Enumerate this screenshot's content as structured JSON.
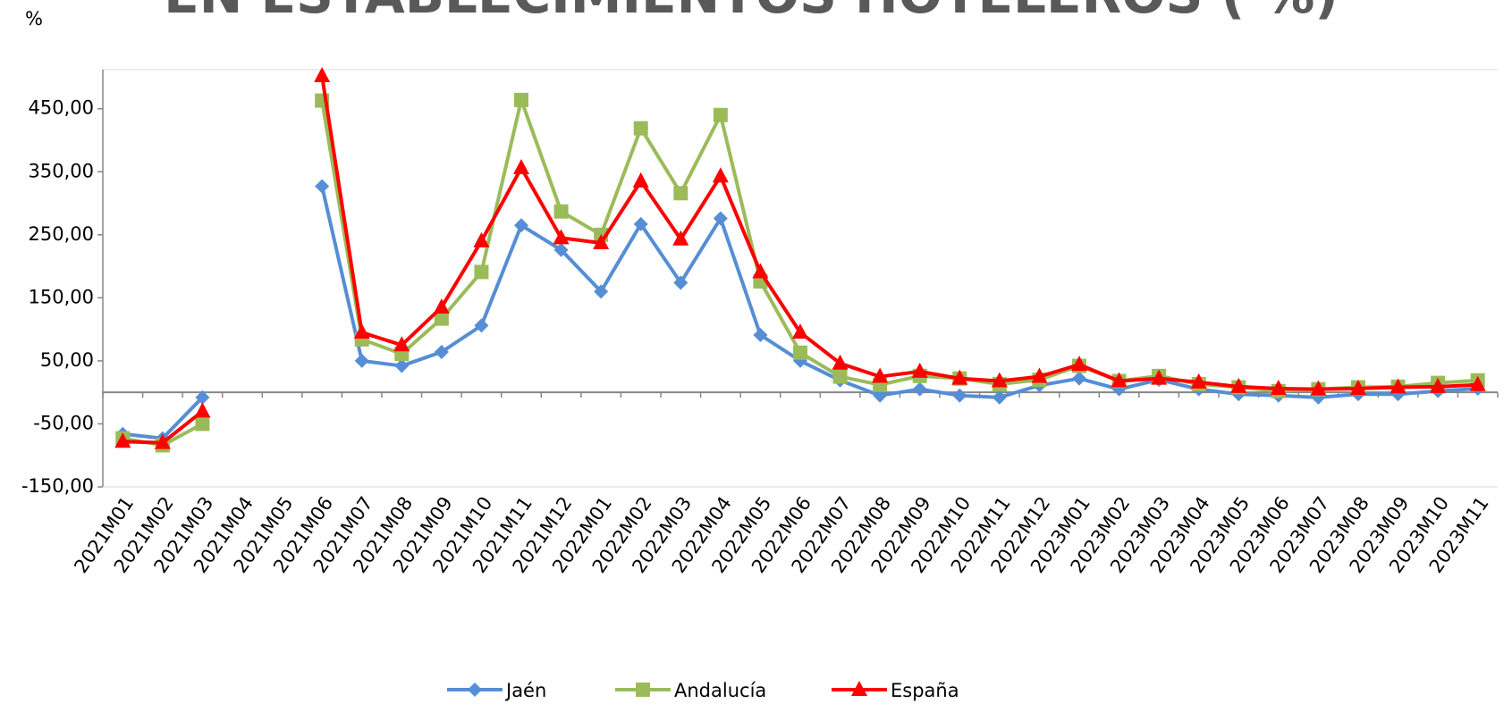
{
  "chart_data": {
    "type": "line",
    "title": "EN ESTABLECIMIENTOS HOTELEROS ( %)",
    "y_label": "%",
    "categories": [
      "2021M01",
      "2021M02",
      "2021M03",
      "2021M04",
      "2021M05",
      "2021M06",
      "2021M07",
      "2021M08",
      "2021M09",
      "2021M10",
      "2021M11",
      "2021M12",
      "2022M01",
      "2022M02",
      "2022M03",
      "2022M04",
      "2022M05",
      "2022M06",
      "2022M07",
      "2022M08",
      "2022M09",
      "2022M10",
      "2022M11",
      "2022M12",
      "2023M01",
      "2023M02",
      "2023M03",
      "2023M04",
      "2023M05",
      "2023M06",
      "2023M07",
      "2023M08",
      "2023M09",
      "2023M10",
      "2023M11"
    ],
    "series": [
      {
        "name": "Jaén",
        "color": "#558ed5",
        "marker": "diamond",
        "values": [
          -66,
          -73,
          -8,
          null,
          null,
          327,
          50,
          42,
          64,
          106,
          265,
          226,
          160,
          267,
          174,
          276,
          91,
          50,
          19,
          -5,
          5,
          -5,
          -8,
          11,
          22,
          5,
          20,
          5,
          -3,
          -5,
          -8,
          -3,
          -3,
          2,
          6
        ]
      },
      {
        "name": "Andalucía",
        "color": "#9bbb59",
        "marker": "square",
        "values": [
          -73,
          -84,
          -50,
          null,
          null,
          463,
          84,
          61,
          117,
          191,
          464,
          287,
          250,
          419,
          316,
          440,
          176,
          63,
          25,
          12,
          26,
          22,
          13,
          20,
          42,
          18,
          26,
          13,
          8,
          2,
          5,
          8,
          9,
          15,
          19
        ]
      },
      {
        "name": "España",
        "color": "#ff0000",
        "marker": "triangle",
        "values": [
          -78,
          -80,
          -30,
          null,
          null,
          502,
          95,
          75,
          135,
          240,
          356,
          245,
          237,
          335,
          243,
          343,
          191,
          95,
          46,
          25,
          33,
          22,
          18,
          25,
          44,
          18,
          22,
          16,
          9,
          6,
          5,
          6,
          8,
          9,
          12
        ]
      }
    ],
    "ylim": [
      -150,
      512
    ],
    "yticks": [
      {
        "value": -150,
        "label": "-150,00"
      },
      {
        "value": -50,
        "label": "-50,00"
      },
      {
        "value": 50,
        "label": "50,00"
      },
      {
        "value": 150,
        "label": "150,00"
      },
      {
        "value": 250,
        "label": "250,00"
      },
      {
        "value": 350,
        "label": "350,00"
      },
      {
        "value": 450,
        "label": "450,00"
      }
    ],
    "grid": false,
    "legend": "bottom"
  }
}
